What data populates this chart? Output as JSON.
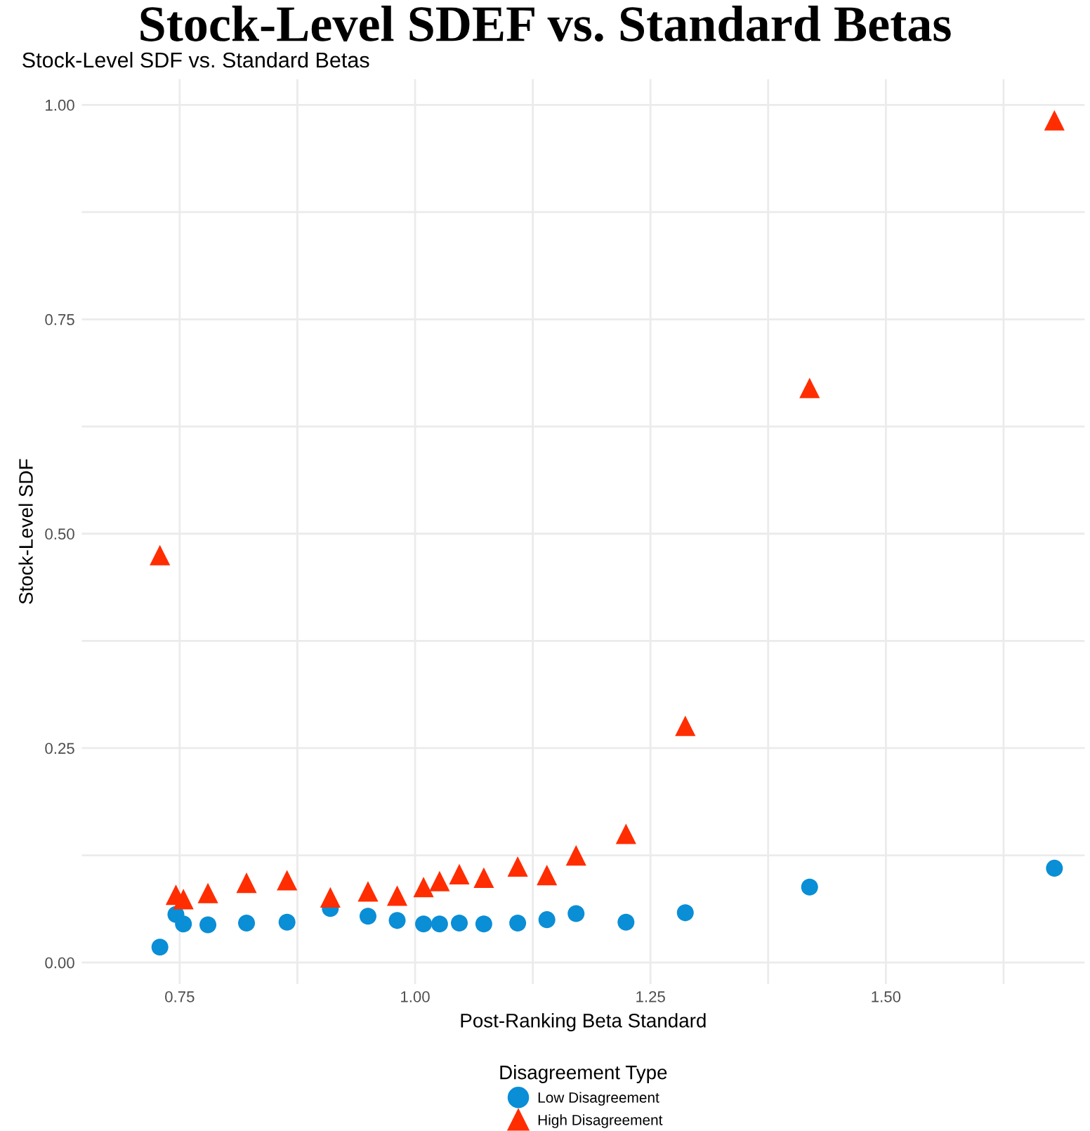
{
  "chart_data": {
    "type": "scatter",
    "title": "Stock-Level SDEF vs. Standard Betas",
    "subtitle": "Stock-Level SDF vs. Standard Betas",
    "xlabel": "Post-Ranking Beta Standard",
    "ylabel": "Stock-Level SDF",
    "legend_title": "Disagreement Type",
    "series": [
      {
        "name": "Low Disagreement",
        "color": "#0a8ed6",
        "marker": "circle",
        "x": [
          0.729,
          0.746,
          0.754,
          0.78,
          0.821,
          0.864,
          0.91,
          0.95,
          0.981,
          1.009,
          1.026,
          1.047,
          1.073,
          1.109,
          1.14,
          1.171,
          1.224,
          1.287,
          1.419,
          1.679
        ],
        "values": [
          0.018,
          0.056,
          0.045,
          0.044,
          0.046,
          0.047,
          0.063,
          0.054,
          0.049,
          0.045,
          0.045,
          0.046,
          0.045,
          0.046,
          0.05,
          0.057,
          0.047,
          0.058,
          0.088,
          0.11
        ]
      },
      {
        "name": "High Disagreement",
        "color": "#ff2d00",
        "marker": "triangle",
        "x": [
          0.729,
          0.746,
          0.754,
          0.78,
          0.821,
          0.864,
          0.91,
          0.95,
          0.981,
          1.009,
          1.026,
          1.047,
          1.073,
          1.109,
          1.14,
          1.171,
          1.224,
          1.287,
          1.419,
          1.679
        ],
        "values": [
          0.475,
          0.079,
          0.074,
          0.081,
          0.093,
          0.096,
          0.076,
          0.083,
          0.078,
          0.088,
          0.095,
          0.103,
          0.099,
          0.112,
          0.102,
          0.125,
          0.15,
          0.276,
          0.67,
          0.982
        ]
      }
    ],
    "xlim": [
      0.646,
      1.711
    ],
    "ylim": [
      -0.025,
      1.03
    ],
    "xticks": [
      0.75,
      {
        "value": 0.875,
        "label": null
      },
      {
        "value": 1,
        "label": "1.00"
      },
      {
        "value": 1.125,
        "label": null
      },
      1.25,
      {
        "value": 1.375,
        "label": null
      },
      {
        "value": 1.5,
        "label": "1.50"
      },
      {
        "value": 1.625,
        "label": null
      }
    ],
    "yticks": [
      {
        "value": 0,
        "label": "0.00"
      },
      {
        "value": 0.125,
        "label": null
      },
      0.25,
      {
        "value": 0.375,
        "label": null
      },
      {
        "value": 0.5,
        "label": "0.50"
      },
      {
        "value": 0.625,
        "label": null
      },
      0.75,
      {
        "value": 0.875,
        "label": null
      },
      {
        "value": 1,
        "label": "1.00"
      }
    ],
    "grid": true,
    "legend": "bottom"
  }
}
